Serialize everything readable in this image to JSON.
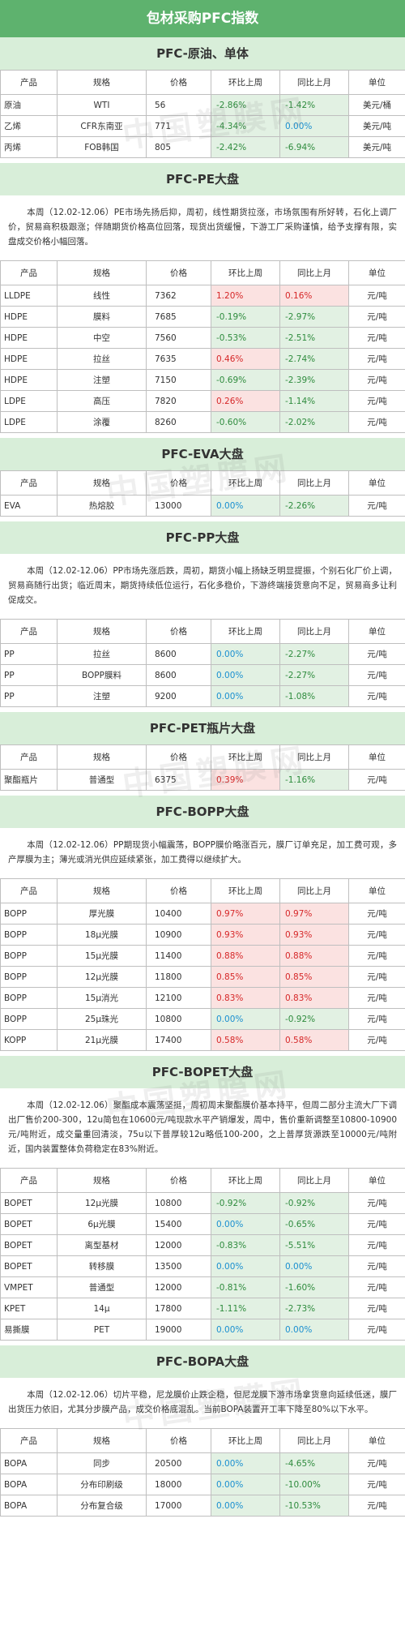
{
  "page_title": "包材采购PFC指数",
  "columns": {
    "product": "产品",
    "spec": "规格",
    "price": "价格",
    "mom": "环比上周",
    "yoy": "同比上月",
    "unit": "单位"
  },
  "watermark": "中国塑膜网",
  "colors": {
    "header_green": "#5eb26e",
    "section_bg": "#d8eed9",
    "rise_red": "#d62728",
    "fall_green": "#2e8b3d",
    "flat_blue": "#1a8fd0"
  },
  "sections": [
    {
      "title": "PFC-原油、单体",
      "paragraph": "",
      "rows": [
        {
          "product": "原油",
          "spec": "WTI",
          "price": "56",
          "mom": "-2.86%",
          "yoy": "-1.42%",
          "unit": "美元/桶"
        },
        {
          "product": "乙烯",
          "spec": "CFR东南亚",
          "price": "771",
          "mom": "-4.34%",
          "yoy": "0.00%",
          "unit": "美元/吨"
        },
        {
          "product": "丙烯",
          "spec": "FOB韩国",
          "price": "805",
          "mom": "-2.42%",
          "yoy": "-6.94%",
          "unit": "美元/吨"
        }
      ]
    },
    {
      "title": "PFC-PE大盘",
      "paragraph": "本周（12.02-12.06）PE市场先扬后抑，周初，线性期货拉涨，市场氛围有所好转，石化上调厂价，贸易商积极跟涨；伴随期货价格高位回落，现货出货缓慢，下游工厂采购谨慎，给予支撑有限，实盘成交价格小幅回落。",
      "rows": [
        {
          "product": "LLDPE",
          "spec": "线性",
          "price": "7362",
          "mom": "1.20%",
          "yoy": "0.16%",
          "unit": "元/吨"
        },
        {
          "product": "HDPE",
          "spec": "膜料",
          "price": "7685",
          "mom": "-0.19%",
          "yoy": "-2.97%",
          "unit": "元/吨"
        },
        {
          "product": "HDPE",
          "spec": "中空",
          "price": "7560",
          "mom": "-0.53%",
          "yoy": "-2.51%",
          "unit": "元/吨"
        },
        {
          "product": "HDPE",
          "spec": "拉丝",
          "price": "7635",
          "mom": "0.46%",
          "yoy": "-2.74%",
          "unit": "元/吨"
        },
        {
          "product": "HDPE",
          "spec": "注塑",
          "price": "7150",
          "mom": "-0.69%",
          "yoy": "-2.39%",
          "unit": "元/吨"
        },
        {
          "product": "LDPE",
          "spec": "高压",
          "price": "7820",
          "mom": "0.26%",
          "yoy": "-1.14%",
          "unit": "元/吨"
        },
        {
          "product": "LDPE",
          "spec": "涂覆",
          "price": "8260",
          "mom": "-0.60%",
          "yoy": "-2.02%",
          "unit": "元/吨"
        }
      ]
    },
    {
      "title": "PFC-EVA大盘",
      "paragraph": "",
      "rows": [
        {
          "product": "EVA",
          "spec": "热熔胶",
          "price": "13000",
          "mom": "0.00%",
          "yoy": "-2.26%",
          "unit": "元/吨"
        }
      ]
    },
    {
      "title": "PFC-PP大盘",
      "paragraph": "本周（12.02-12.06）PP市场先涨后跌，周初，期货小幅上扬缺乏明显提振，个别石化厂价上调，贸易商随行出货；临近周末，期货持续低位运行，石化多稳价，下游终端接货意向不足，贸易商多让利促成交。",
      "rows": [
        {
          "product": "PP",
          "spec": "拉丝",
          "price": "8600",
          "mom": "0.00%",
          "yoy": "-2.27%",
          "unit": "元/吨"
        },
        {
          "product": "PP",
          "spec": "BOPP膜料",
          "price": "8600",
          "mom": "0.00%",
          "yoy": "-2.27%",
          "unit": "元/吨"
        },
        {
          "product": "PP",
          "spec": "注塑",
          "price": "9200",
          "mom": "0.00%",
          "yoy": "-1.08%",
          "unit": "元/吨"
        }
      ]
    },
    {
      "title": "PFC-PET瓶片大盘",
      "paragraph": "",
      "rows": [
        {
          "product": "聚酯瓶片",
          "spec": "普通型",
          "price": "6375",
          "mom": "0.39%",
          "yoy": "-1.16%",
          "unit": "元/吨"
        }
      ]
    },
    {
      "title": "PFC-BOPP大盘",
      "paragraph": "本周（12.02-12.06）PP期现货小幅震荡，BOPP膜价略涨百元，膜厂订单充足，加工费可观，多产厚膜为主；薄光或消光供应延续紧张，加工费得以继续扩大。",
      "rows": [
        {
          "product": "BOPP",
          "spec": "厚光膜",
          "price": "10400",
          "mom": "0.97%",
          "yoy": "0.97%",
          "unit": "元/吨"
        },
        {
          "product": "BOPP",
          "spec": "18μ光膜",
          "price": "10900",
          "mom": "0.93%",
          "yoy": "0.93%",
          "unit": "元/吨"
        },
        {
          "product": "BOPP",
          "spec": "15μ光膜",
          "price": "11400",
          "mom": "0.88%",
          "yoy": "0.88%",
          "unit": "元/吨"
        },
        {
          "product": "BOPP",
          "spec": "12μ光膜",
          "price": "11800",
          "mom": "0.85%",
          "yoy": "0.85%",
          "unit": "元/吨"
        },
        {
          "product": "BOPP",
          "spec": "15μ消光",
          "price": "12100",
          "mom": "0.83%",
          "yoy": "0.83%",
          "unit": "元/吨"
        },
        {
          "product": "BOPP",
          "spec": "25μ珠光",
          "price": "10800",
          "mom": "0.00%",
          "yoy": "-0.92%",
          "unit": "元/吨"
        },
        {
          "product": "KOPP",
          "spec": "21μ光膜",
          "price": "17400",
          "mom": "0.58%",
          "yoy": "0.58%",
          "unit": "元/吨"
        }
      ]
    },
    {
      "title": "PFC-BOPET大盘",
      "paragraph": "本周（12.02-12.06）聚酯成本震荡坚挺，周初周末聚酯膜价基本持平，但周二部分主流大厂下调出厂售价200-300，12u简包在10600元/吨现款水平产销爆发，周中，售价重新调整至10800-10900元/吨附近，成交量重回清淡，75u以下普厚较12u略低100-200，之上普厚货源跌至10000元/吨附近，国内装置整体负荷稳定在83%附近。",
      "rows": [
        {
          "product": "BOPET",
          "spec": "12μ光膜",
          "price": "10800",
          "mom": "-0.92%",
          "yoy": "-0.92%",
          "unit": "元/吨"
        },
        {
          "product": "BOPET",
          "spec": "6μ光膜",
          "price": "15400",
          "mom": "0.00%",
          "yoy": "-0.65%",
          "unit": "元/吨"
        },
        {
          "product": "BOPET",
          "spec": "离型基材",
          "price": "12000",
          "mom": "-0.83%",
          "yoy": "-5.51%",
          "unit": "元/吨"
        },
        {
          "product": "BOPET",
          "spec": "转移膜",
          "price": "13500",
          "mom": "0.00%",
          "yoy": "0.00%",
          "unit": "元/吨"
        },
        {
          "product": "VMPET",
          "spec": "普通型",
          "price": "12000",
          "mom": "-0.81%",
          "yoy": "-1.60%",
          "unit": "元/吨"
        },
        {
          "product": "KPET",
          "spec": "14μ",
          "price": "17800",
          "mom": "-1.11%",
          "yoy": "-2.73%",
          "unit": "元/吨"
        },
        {
          "product": "易撕膜",
          "spec": "PET",
          "price": "19000",
          "mom": "0.00%",
          "yoy": "0.00%",
          "unit": "元/吨"
        }
      ]
    },
    {
      "title": "PFC-BOPA大盘",
      "paragraph": "本周（12.02-12.06）切片平稳，尼龙膜价止跌企稳，但尼龙膜下游市场拿货意向延续低迷，膜厂出货压力依旧，尤其分步膜产品，成交价格底混乱。当前BOPA装置开工率下降至80%以下水平。",
      "rows": [
        {
          "product": "BOPA",
          "spec": "同步",
          "price": "20500",
          "mom": "0.00%",
          "yoy": "-4.65%",
          "unit": "元/吨"
        },
        {
          "product": "BOPA",
          "spec": "分布印刷级",
          "price": "18000",
          "mom": "0.00%",
          "yoy": "-10.00%",
          "unit": "元/吨"
        },
        {
          "product": "BOPA",
          "spec": "分布复合级",
          "price": "17000",
          "mom": "0.00%",
          "yoy": "-10.53%",
          "unit": "元/吨"
        }
      ]
    }
  ]
}
